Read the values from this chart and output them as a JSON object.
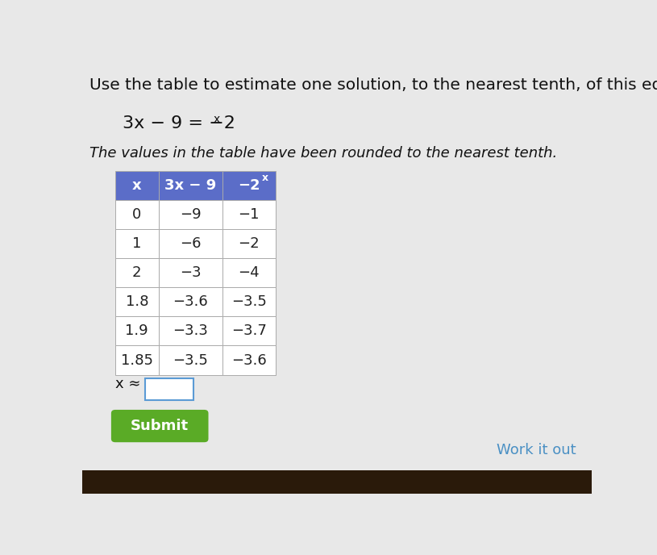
{
  "title_line1": "Use the table to estimate one solution, to the nearest tenth, of this equa",
  "subtitle": "The values in the table have been rounded to the nearest tenth.",
  "col_headers": [
    "x",
    "3x − 9",
    "−2"
  ],
  "col_header_sups": [
    "",
    "",
    "x"
  ],
  "table_data": [
    [
      "0",
      "−9",
      "−1"
    ],
    [
      "1",
      "−6",
      "−2"
    ],
    [
      "2",
      "−3",
      "−4"
    ],
    [
      "1.8",
      "−3.6",
      "−3.5"
    ],
    [
      "1.9",
      "−3.3",
      "−3.7"
    ],
    [
      "1.85",
      "−3.5",
      "−3.6"
    ]
  ],
  "header_bg": "#5b6dc8",
  "header_text_color": "#ffffff",
  "row_bg_odd": "#f0f0f0",
  "row_bg_even": "#ffffff",
  "row_text_color": "#222222",
  "border_color": "#aaaaaa",
  "input_label": "x ≈",
  "input_border_color": "#5b9bd5",
  "submit_text": "Submit",
  "submit_bg": "#5aab26",
  "submit_text_color": "#ffffff",
  "work_it_out_text": "Work it out",
  "work_it_out_color": "#4a90c4",
  "bg_color": "#e8e8e8",
  "bottom_bar_color": "#2a1a0a",
  "title_fontsize": 14.5,
  "subtitle_fontsize": 13,
  "table_fontsize": 13,
  "eq_fontsize": 16
}
